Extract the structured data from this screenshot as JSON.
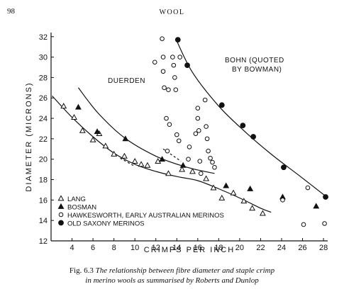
{
  "page": {
    "number": "98",
    "running_head": "WOOL"
  },
  "caption": {
    "figure_number": "Fig. 6.3",
    "line1": "The relationship between fibre diameter and staple crimp",
    "line2": "in merino wools as summarised by Roberts and Dunlop"
  },
  "chart_data": {
    "type": "scatter",
    "title": "",
    "xlabel": "CRIMPS PER INCH",
    "ylabel": "DIAMETER (MICRONS)",
    "xlim": [
      2,
      28.4
    ],
    "ylim": [
      12,
      32.4
    ],
    "xticks": [
      4,
      6,
      8,
      10,
      12,
      14,
      16,
      18,
      20,
      22,
      24,
      26,
      28
    ],
    "yticks": [
      12,
      14,
      16,
      18,
      20,
      22,
      24,
      26,
      28,
      30,
      32
    ],
    "grid": false,
    "legend_position": "bottom-left",
    "series": [
      {
        "name": "LANG",
        "marker": "open-triangle",
        "points": [
          [
            3.2,
            25.2
          ],
          [
            4.2,
            24.1
          ],
          [
            5.0,
            22.8
          ],
          [
            6.0,
            21.9
          ],
          [
            6.6,
            22.5
          ],
          [
            7.2,
            21.3
          ],
          [
            8.0,
            20.5
          ],
          [
            9.0,
            20.3
          ],
          [
            10.0,
            19.8
          ],
          [
            10.6,
            19.5
          ],
          [
            11.2,
            19.4
          ],
          [
            12.2,
            19.8
          ],
          [
            13.2,
            18.6
          ],
          [
            14.5,
            19.0
          ],
          [
            15.5,
            18.8
          ],
          [
            16.8,
            18.1
          ],
          [
            17.5,
            17.2
          ],
          [
            18.3,
            16.2
          ],
          [
            19.4,
            16.7
          ],
          [
            20.4,
            15.9
          ],
          [
            21.2,
            15.2
          ],
          [
            22.2,
            14.7
          ]
        ]
      },
      {
        "name": "BOSMAN",
        "marker": "filled-triangle",
        "points": [
          [
            4.6,
            25.1
          ],
          [
            6.4,
            22.7
          ],
          [
            9.1,
            22.0
          ],
          [
            12.6,
            20.0
          ],
          [
            14.6,
            19.4
          ],
          [
            18.7,
            17.4
          ],
          [
            21.0,
            17.1
          ],
          [
            24.1,
            16.3
          ],
          [
            27.3,
            15.4
          ]
        ]
      },
      {
        "name": "HAWKESWORTH, EARLY AUSTRALIAN MERINOS",
        "marker": "open-circle",
        "points": [
          [
            11.9,
            29.5
          ],
          [
            12.6,
            31.8
          ],
          [
            12.7,
            30.0
          ],
          [
            12.7,
            28.6
          ],
          [
            12.8,
            27.0
          ],
          [
            13.0,
            24.0
          ],
          [
            13.1,
            20.8
          ],
          [
            13.2,
            26.8
          ],
          [
            13.3,
            23.4
          ],
          [
            13.6,
            30.0
          ],
          [
            13.7,
            29.2
          ],
          [
            13.8,
            28.0
          ],
          [
            13.9,
            26.8
          ],
          [
            14.0,
            22.4
          ],
          [
            14.2,
            21.8
          ],
          [
            14.3,
            30.0
          ],
          [
            15.1,
            20.0
          ],
          [
            15.2,
            21.2
          ],
          [
            15.8,
            22.5
          ],
          [
            16.0,
            25.0
          ],
          [
            16.0,
            24.0
          ],
          [
            16.1,
            22.8
          ],
          [
            16.2,
            19.8
          ],
          [
            16.3,
            18.6
          ],
          [
            16.7,
            25.8
          ],
          [
            16.8,
            23.2
          ],
          [
            16.9,
            22.0
          ],
          [
            17.0,
            20.8
          ],
          [
            17.2,
            20.1
          ],
          [
            17.4,
            19.7
          ],
          [
            17.6,
            19.2
          ],
          [
            24.1,
            16.0
          ],
          [
            26.1,
            13.6
          ],
          [
            26.5,
            17.2
          ],
          [
            28.1,
            13.7
          ]
        ]
      },
      {
        "name": "OLD SAXONY MERINOS",
        "marker": "filled-circle",
        "points": [
          [
            14.1,
            31.7
          ],
          [
            15.0,
            29.2
          ],
          [
            18.3,
            25.3
          ],
          [
            20.3,
            23.3
          ],
          [
            21.3,
            22.2
          ],
          [
            24.2,
            19.2
          ],
          [
            28.2,
            16.3
          ]
        ]
      }
    ],
    "curves": [
      {
        "label": "DUERDEN",
        "points": [
          [
            4.6,
            27.0
          ],
          [
            6.5,
            24.5
          ],
          [
            9.0,
            22.1
          ],
          [
            12.0,
            20.3
          ],
          [
            15.0,
            19.2
          ],
          [
            17.6,
            18.6
          ]
        ]
      },
      {
        "label": "BOHN (QUOTED BY BOWMAN)",
        "points": [
          [
            13.9,
            31.8
          ],
          [
            15.5,
            28.5
          ],
          [
            18.0,
            25.2
          ],
          [
            20.5,
            22.7
          ],
          [
            23.0,
            20.5
          ],
          [
            25.8,
            18.3
          ],
          [
            28.3,
            16.3
          ]
        ]
      },
      {
        "label": "",
        "points": [
          [
            2.1,
            26.2
          ],
          [
            4.0,
            24.1
          ],
          [
            6.0,
            22.2
          ],
          [
            8.0,
            20.6
          ],
          [
            10.0,
            19.5
          ],
          [
            12.0,
            18.8
          ],
          [
            14.0,
            18.3
          ],
          [
            16.0,
            17.9
          ],
          [
            18.0,
            17.1
          ],
          [
            20.0,
            16.2
          ],
          [
            22.0,
            15.2
          ],
          [
            23.0,
            14.8
          ]
        ]
      },
      {
        "label": "",
        "style": "dashed",
        "points": [
          [
            8.6,
            20.1
          ],
          [
            10.0,
            19.3
          ]
        ]
      },
      {
        "label": "",
        "style": "dashed",
        "points": [
          [
            12.7,
            21.0
          ],
          [
            14.4,
            19.8
          ]
        ]
      }
    ]
  }
}
